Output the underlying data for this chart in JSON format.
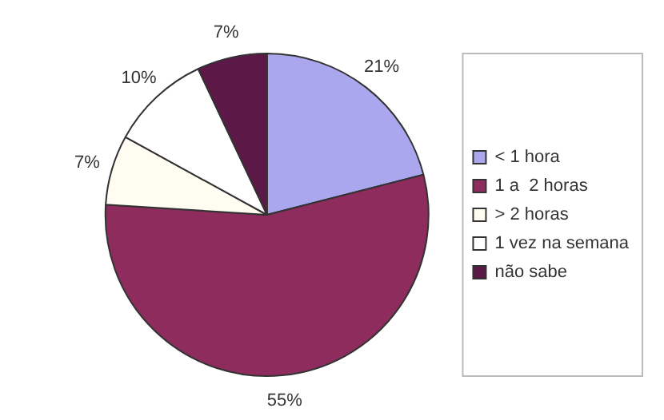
{
  "chart_data": {
    "type": "pie",
    "categories": [
      "< 1 hora",
      "1 a  2 horas",
      "> 2 horas",
      "1 vez na semana",
      "não sabe"
    ],
    "values": [
      21,
      55,
      7,
      10,
      7
    ],
    "value_labels": [
      "21%",
      "55%",
      "7%",
      "10%",
      "7%"
    ],
    "colors": [
      "#aaa7ef",
      "#8e2c5e",
      "#fffcf2",
      "#ffffff",
      "#5c1846"
    ],
    "legend": "right"
  }
}
